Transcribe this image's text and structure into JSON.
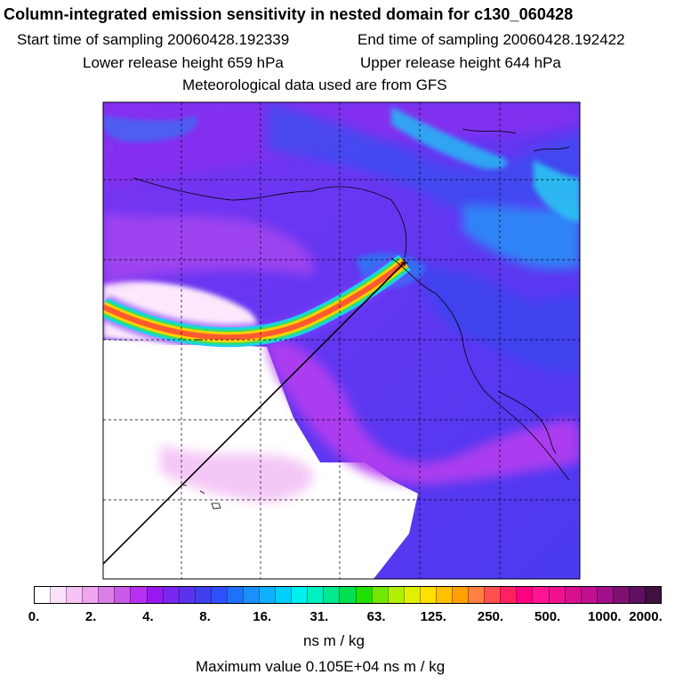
{
  "title": "Column-integrated emission sensitivity in nested domain for c130_060428",
  "start_label": "Start time of sampling 20060428.192339",
  "end_label": "End time of sampling 20060428.192422",
  "lower_label": "Lower release height  659 hPa",
  "upper_label": "Upper release height  644 hPa",
  "met_label": "Meteorological data used are from GFS",
  "colorbar": {
    "units": "ns m / kg",
    "ticks": [
      "0.",
      "2.",
      "4.",
      "8.",
      "16.",
      "31.",
      "63.",
      "125.",
      "250.",
      "500.",
      "1000.",
      "2000."
    ],
    "colors": [
      "#ffffff",
      "#fbe2fb",
      "#f5c4f5",
      "#eea6ee",
      "#d97fe6",
      "#c95ae8",
      "#b730ef",
      "#9a17f2",
      "#7a25f0",
      "#5c32ee",
      "#4040ee",
      "#3050ff",
      "#2070ff",
      "#1a90ff",
      "#10b0ff",
      "#00d0ff",
      "#00f0f0",
      "#00f0c0",
      "#00e890",
      "#00e050",
      "#20e000",
      "#70e800",
      "#b0f000",
      "#e0f000",
      "#ffe000",
      "#ffc000",
      "#ffa000",
      "#ff8040",
      "#ff5050",
      "#ff2060",
      "#ff0080",
      "#ff1493",
      "#f01090",
      "#d8108e",
      "#c01090",
      "#a0108a",
      "#801070",
      "#601060",
      "#401040"
    ]
  },
  "max_value_label": "Maximum value  0.105E+04 ns m / kg",
  "map": {
    "grid_lines_x": 5,
    "grid_lines_y": 5,
    "release_marker": "+",
    "colors": {
      "background_purple": "#8a3cf0",
      "blue": "#3a3ce8",
      "light_blue": "#2aa0ff",
      "cyan": "#1ed8f0",
      "magenta": "#c040f0",
      "pale": "#f6d8f8",
      "plume_outer": "#ff6a3c",
      "plume_inner": "#ffd000"
    }
  }
}
